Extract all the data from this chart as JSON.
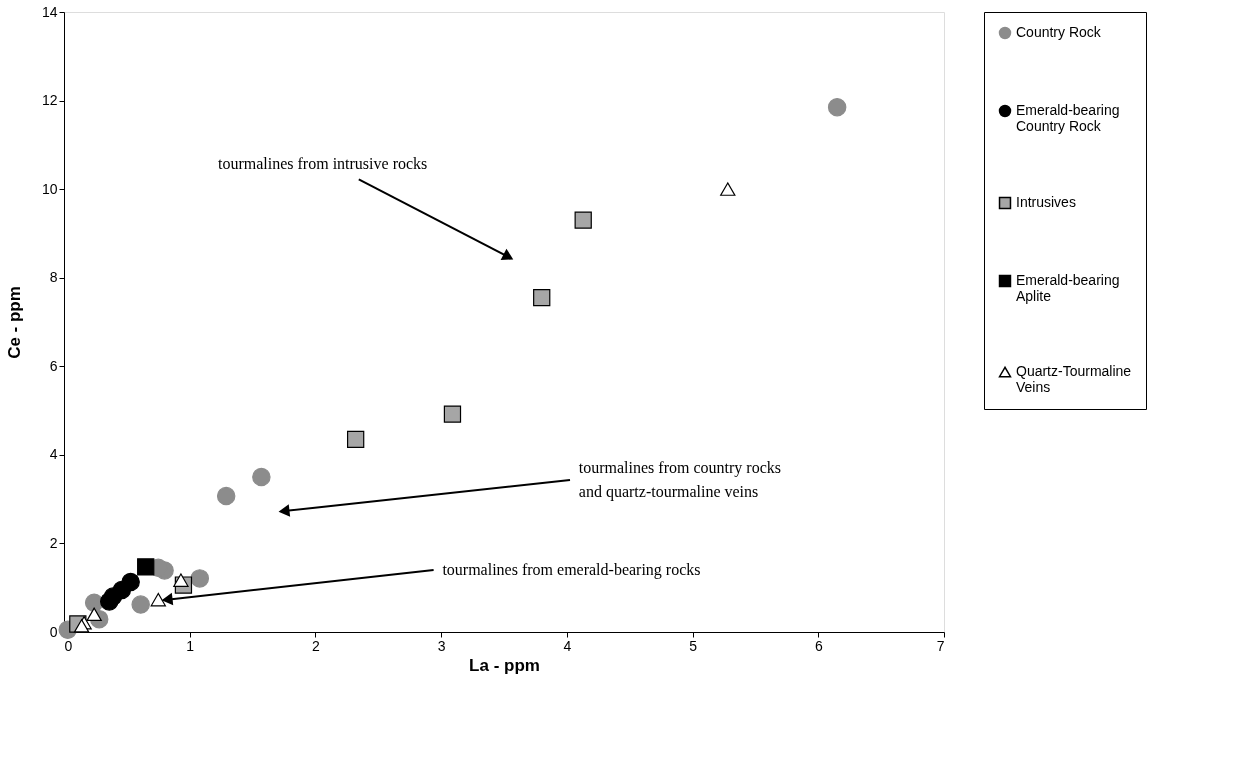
{
  "chart_data": {
    "type": "scatter",
    "xlabel": "La - ppm",
    "ylabel": "Ce - ppm",
    "xlim": [
      0,
      7
    ],
    "ylim": [
      0,
      14
    ],
    "xticks": [
      0,
      1,
      2,
      3,
      4,
      5,
      6,
      7
    ],
    "yticks": [
      0,
      2,
      4,
      6,
      8,
      10,
      12,
      14
    ],
    "grid": false,
    "legend": "right",
    "series": [
      {
        "name": "Country Rock",
        "color": "#8c8c8c",
        "marker": "circle",
        "x": [
          6.15,
          1.57,
          1.29,
          0.8,
          0.75,
          1.08,
          0.61,
          0.03,
          0.24,
          0.28
        ],
        "values": [
          11.85,
          3.5,
          3.07,
          1.39,
          1.45,
          1.21,
          0.62,
          0.05,
          0.66,
          0.29
        ]
      },
      {
        "name": "Emerald-bearing Country Rock",
        "color": "#000000",
        "marker": "circle",
        "x": [
          0.36,
          0.39,
          0.46,
          0.53
        ],
        "values": [
          0.69,
          0.8,
          0.95,
          1.13
        ]
      },
      {
        "name": "Intrusives",
        "color": "#a6a6a6",
        "marker": "square",
        "x": [
          4.13,
          3.8,
          3.09,
          2.32,
          0.95,
          0.11
        ],
        "values": [
          9.3,
          7.55,
          4.92,
          4.35,
          1.06,
          0.18
        ]
      },
      {
        "name": "Emerald-bearing Aplite",
        "color": "#000000",
        "marker": "square",
        "x": [
          0.65
        ],
        "values": [
          1.47
        ]
      },
      {
        "name": "Quartz-Tourmaline Veins",
        "color": "#ffffff",
        "marker": "triangle",
        "x": [
          5.28,
          0.93,
          0.75,
          0.24,
          0.16,
          0.14
        ],
        "values": [
          10.0,
          1.17,
          0.73,
          0.4,
          0.21,
          0.14
        ]
      }
    ],
    "annotations": [
      "tourmalines from intrusive rocks",
      "tourmalines from country rocks and quartz-tourmaline veins",
      {
        "text": "tourmalines from emerald-bearing rocks",
        "x": 0.82,
        "y": 0.73
      }
    ]
  }
}
